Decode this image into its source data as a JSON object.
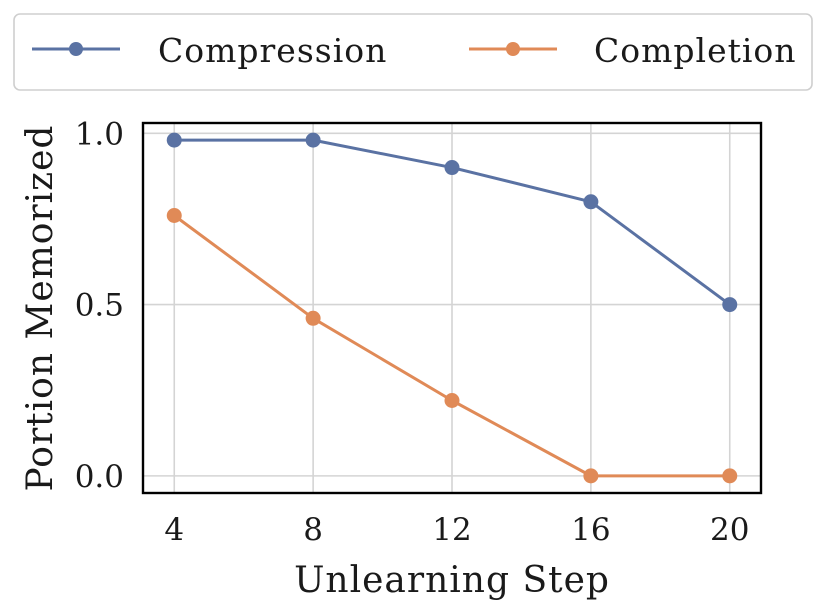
{
  "chart_data": {
    "type": "line",
    "x": [
      4,
      8,
      12,
      16,
      20
    ],
    "series": [
      {
        "name": "Compression",
        "values": [
          0.98,
          0.98,
          0.9,
          0.8,
          0.5
        ],
        "color": "#5a72a3"
      },
      {
        "name": "Completion",
        "values": [
          0.76,
          0.46,
          0.22,
          0.0,
          0.0
        ],
        "color": "#e08a57"
      }
    ],
    "xlabel": "Unlearning Step",
    "ylabel": "Portion Memorized",
    "xticks": [
      "4",
      "8",
      "12",
      "16",
      "20"
    ],
    "yticks": [
      "0.0",
      "0.5",
      "1.0"
    ],
    "ytick_values": [
      0.0,
      0.5,
      1.0
    ],
    "xlim": [
      3.1,
      20.9
    ],
    "ylim": [
      -0.05,
      1.03
    ],
    "grid": true,
    "legend_position": "top"
  }
}
